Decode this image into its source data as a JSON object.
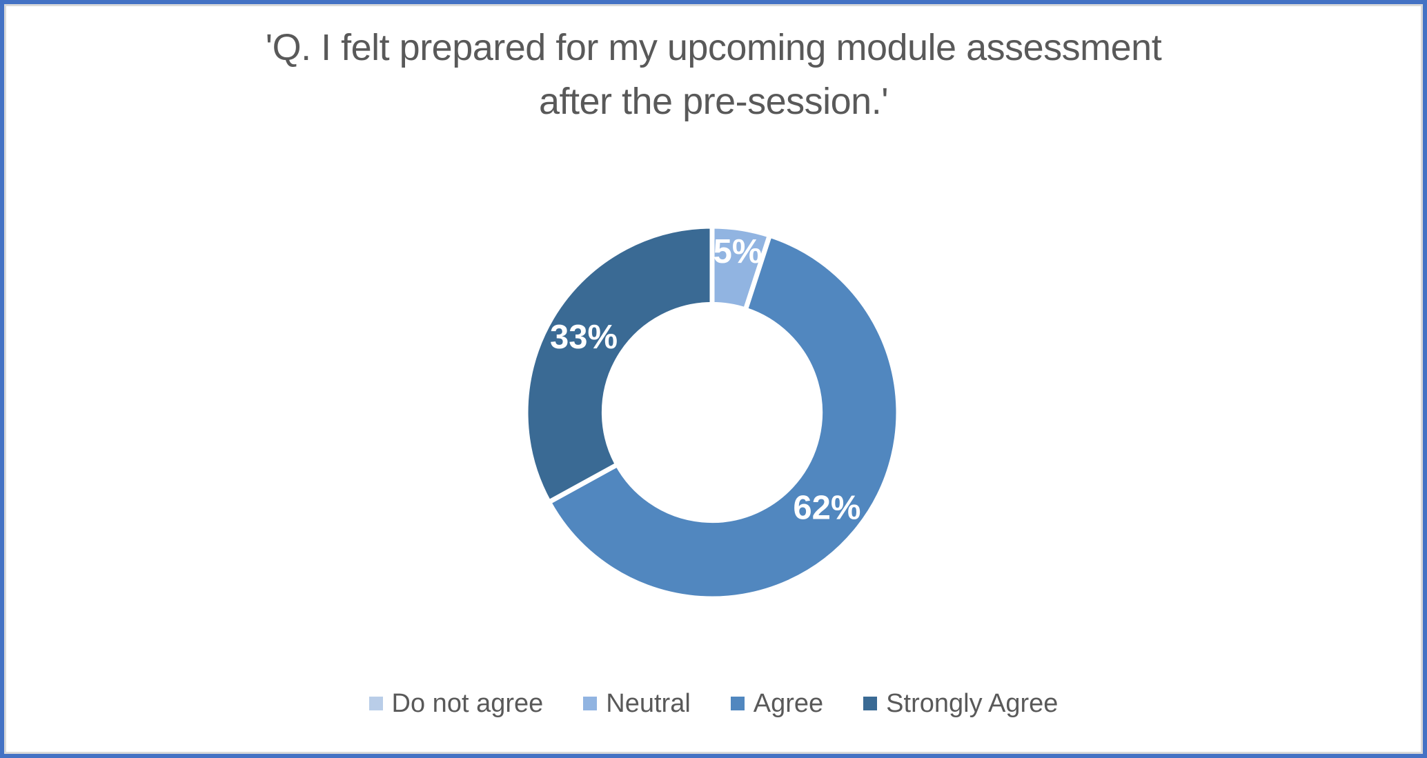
{
  "frame": {
    "outer_border_color": "#4472C4",
    "inner_line_color": "#D9D9D9"
  },
  "title": {
    "line1": "'Q. I felt prepared for my upcoming module assessment",
    "line2": "after the pre-session.'",
    "color": "#595959"
  },
  "chart_data": {
    "type": "pie",
    "subtype": "donut",
    "title": "'Q. I felt prepared for my upcoming module assessment after the pre-session.'",
    "categories": [
      "Do not agree",
      "Neutral",
      "Agree",
      "Strongly Agree"
    ],
    "values": [
      0,
      5,
      62,
      33
    ],
    "unit": "percent",
    "colors": [
      "#B9CDE8",
      "#91B4E1",
      "#5187BF",
      "#3A6A94"
    ],
    "data_labels": [
      "",
      "5%",
      "62%",
      "33%"
    ],
    "data_label_color": "#FFFFFF",
    "start_angle_deg": 0,
    "direction": "clockwise",
    "hole_ratio": 0.58,
    "slice_border_color": "#FFFFFF",
    "legend_position": "bottom",
    "legend_text_color": "#595959"
  }
}
